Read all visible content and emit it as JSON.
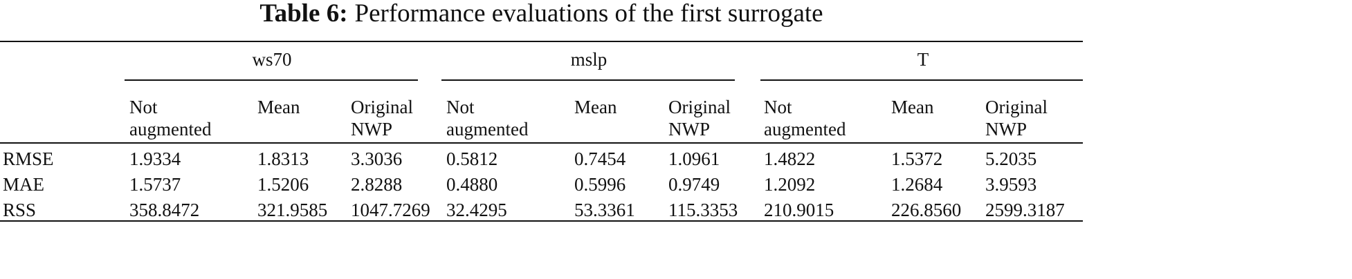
{
  "title": {
    "label": "Table 6:",
    "text": "Performance evaluations of the first surrogate"
  },
  "table": {
    "groups": [
      "ws70",
      "mslp",
      "T"
    ],
    "columns": [
      "Not augmented",
      "Mean",
      "Original NWP",
      "Not augmented",
      "Mean",
      "Original NWP",
      "Not augmented",
      "Mean",
      "Original NWP"
    ],
    "rows": [
      {
        "label": "RMSE",
        "values": [
          "1.9334",
          "1.8313",
          "3.3036",
          "0.5812",
          "0.7454",
          "1.0961",
          "1.4822",
          "1.5372",
          "5.2035"
        ]
      },
      {
        "label": "MAE",
        "values": [
          "1.5737",
          "1.5206",
          "2.8288",
          "0.4880",
          "0.5996",
          "0.9749",
          "1.2092",
          "1.2684",
          "3.9593"
        ]
      },
      {
        "label": "RSS",
        "values": [
          "358.8472",
          "321.9585",
          "1047.7269",
          "32.4295",
          "53.3361",
          "115.3353",
          "210.9015",
          "226.8560",
          "2599.3187"
        ]
      }
    ]
  }
}
